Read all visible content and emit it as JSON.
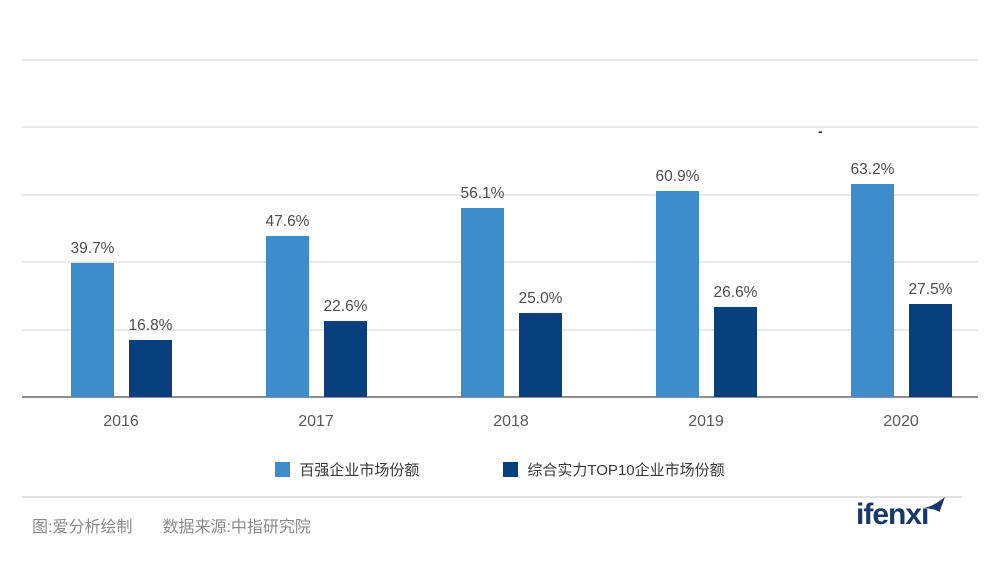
{
  "chart_data": {
    "type": "bar",
    "title": "",
    "categories": [
      "2016",
      "2017",
      "2018",
      "2019",
      "2020"
    ],
    "series": [
      {
        "name": "百强企业市场份额",
        "color": "#3D8CCB",
        "values": [
          39.7,
          47.6,
          56.1,
          60.9,
          63.2
        ]
      },
      {
        "name": "综合实力TOP10企业市场份额",
        "color": "#083F7E",
        "values": [
          16.8,
          22.6,
          25.0,
          26.6,
          27.5
        ]
      }
    ],
    "value_suffix": "%",
    "ylim": [
      0,
      100
    ],
    "grid_step": 20,
    "grid": "horizontal-only",
    "y_tick_labels_visible": false,
    "legend_position": "bottom",
    "data_labels_visible": true
  },
  "footer": {
    "credit": "图:爱分析绘制",
    "source": "数据来源:中指研究院",
    "logo_text": "ifenxı"
  },
  "misc": {
    "stray_dash": "-"
  },
  "colors": {
    "background": "#FFFFFF",
    "grid": "#E9E9E9",
    "axis": "#8F8F8F",
    "bar_label": "#4D4D4D",
    "category_label": "#595959",
    "legend_text": "#383838",
    "footer_text": "#8A8A8A",
    "divider": "#E3E3E3",
    "logo": "#16386D"
  }
}
